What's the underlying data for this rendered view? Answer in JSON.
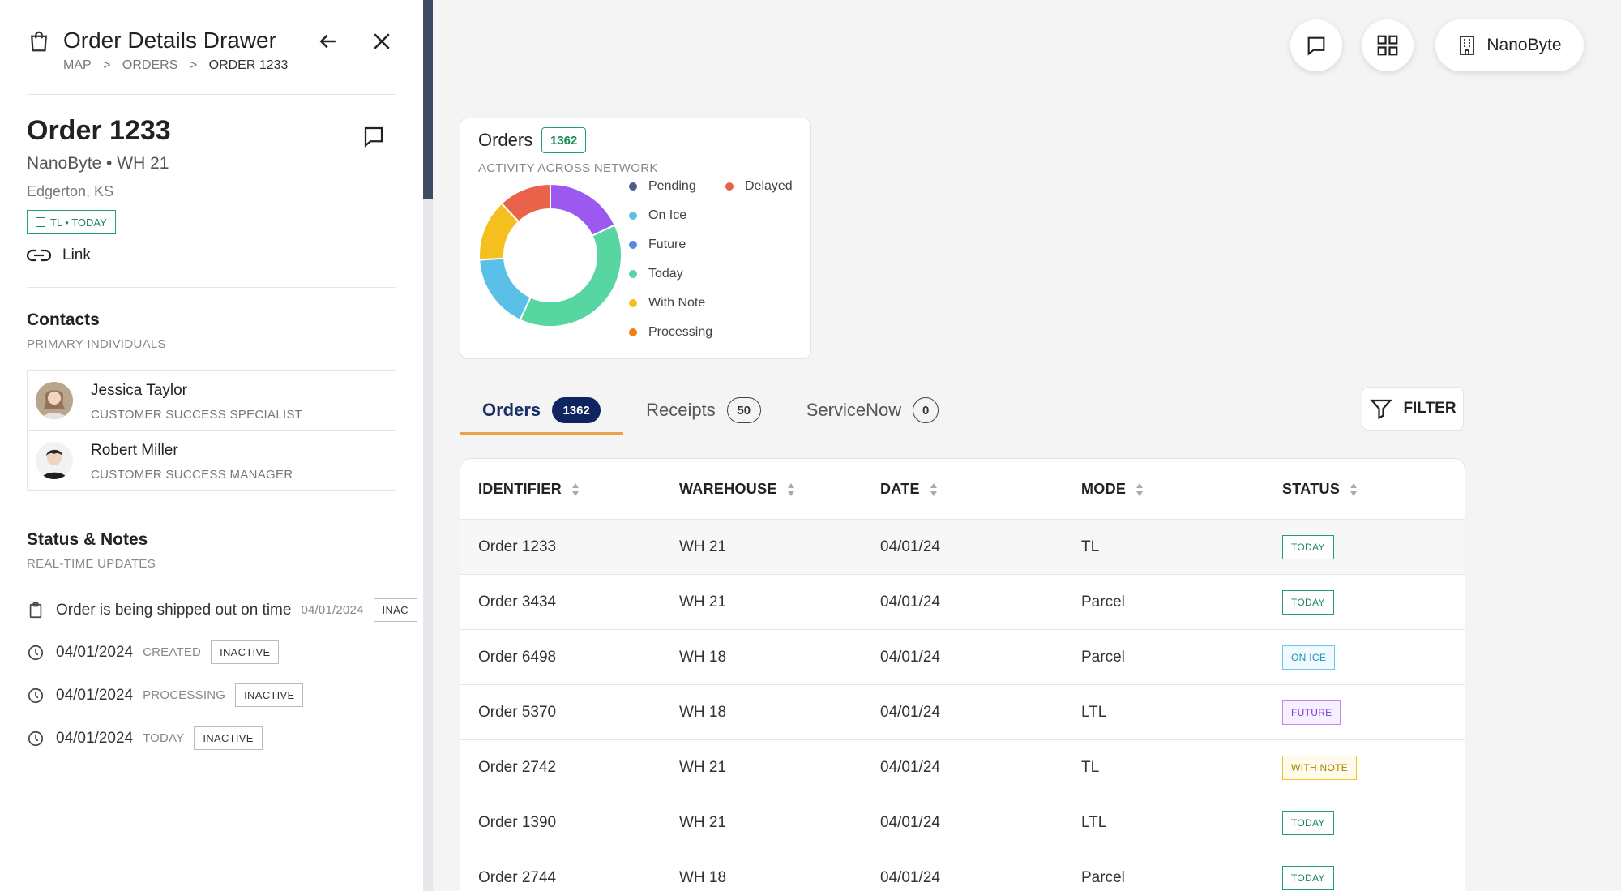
{
  "drawer": {
    "title": "Order Details Drawer",
    "breadcrumbs": [
      "MAP",
      ">",
      "ORDERS",
      ">",
      "ORDER 1233"
    ],
    "order": {
      "title": "Order 1233",
      "subtitle": "NanoByte • WH 21",
      "location": "Edgerton, KS",
      "tag": "TL • TODAY",
      "link_label": "Link"
    },
    "contacts": {
      "title": "Contacts",
      "subtitle": "PRIMARY INDIVIDUALS",
      "items": [
        {
          "name": "Jessica Taylor",
          "role": "CUSTOMER SUCCESS SPECIALIST"
        },
        {
          "name": "Robert Miller",
          "role": "CUSTOMER SUCCESS MANAGER"
        }
      ]
    },
    "status_notes": {
      "title": "Status & Notes",
      "subtitle": "REAL-TIME UPDATES",
      "note": {
        "text": "Order is being shipped out on time",
        "date": "04/01/2024",
        "pill": "INAC"
      },
      "events": [
        {
          "date": "04/01/2024",
          "label": "CREATED",
          "pill": "INACTIVE"
        },
        {
          "date": "04/01/2024",
          "label": "PROCESSING",
          "pill": "INACTIVE"
        },
        {
          "date": "04/01/2024",
          "label": "TODAY",
          "pill": "INACTIVE"
        }
      ]
    }
  },
  "header": {
    "org_label": "NanoByte",
    "icons": [
      "chat-icon",
      "grid-icon",
      "building-icon"
    ]
  },
  "summary": {
    "title": "Orders",
    "count": "1362",
    "subtitle": "ACTIVITY ACROSS NETWORK"
  },
  "chart_data": {
    "type": "pie",
    "variant": "donut",
    "categories": [
      "Pending",
      "On Ice",
      "Future",
      "Today",
      "With Note",
      "Processing",
      "Delayed"
    ],
    "values": [
      0,
      17,
      0,
      39,
      14,
      0,
      12
    ],
    "extra_segment": {
      "color": "#9b59f0",
      "value": 18
    },
    "colors": {
      "Pending": "#4a5c8a",
      "On Ice": "#5bc0e8",
      "Future": "#5a86e6",
      "Today": "#58d6a2",
      "With Note": "#f5bf1d",
      "Processing": "#f07f12",
      "Delayed": "#e8634a"
    },
    "legend_position": "right"
  },
  "tabs": [
    {
      "label": "Orders",
      "count": "1362",
      "active": true
    },
    {
      "label": "Receipts",
      "count": "50",
      "active": false
    },
    {
      "label": "ServiceNow",
      "count": "0",
      "active": false
    }
  ],
  "filter_label": "FILTER",
  "table": {
    "columns": [
      "IDENTIFIER",
      "WAREHOUSE",
      "DATE",
      "MODE",
      "STATUS"
    ],
    "rows": [
      {
        "id": "Order 1233",
        "wh": "WH 21",
        "date": "04/01/24",
        "mode": "TL",
        "status": "TODAY"
      },
      {
        "id": "Order 3434",
        "wh": "WH 21",
        "date": "04/01/24",
        "mode": "Parcel",
        "status": "TODAY"
      },
      {
        "id": "Order 6498",
        "wh": "WH 18",
        "date": "04/01/24",
        "mode": "Parcel",
        "status": "ON ICE"
      },
      {
        "id": "Order 5370",
        "wh": "WH 18",
        "date": "04/01/24",
        "mode": "LTL",
        "status": "FUTURE"
      },
      {
        "id": "Order 2742",
        "wh": "WH 21",
        "date": "04/01/24",
        "mode": "TL",
        "status": "WITH NOTE"
      },
      {
        "id": "Order 1390",
        "wh": "WH 21",
        "date": "04/01/24",
        "mode": "LTL",
        "status": "TODAY"
      },
      {
        "id": "Order 2744",
        "wh": "WH 18",
        "date": "04/01/24",
        "mode": "Parcel",
        "status": "TODAY"
      }
    ],
    "status_colors": {
      "TODAY": {
        "fg": "#1d8a5a",
        "bg": "#ffffff",
        "border": "#22a06b"
      },
      "ON ICE": {
        "fg": "#1a8fc4",
        "bg": "#f0fafe",
        "border": "#6cc7ec"
      },
      "FUTURE": {
        "fg": "#7d3bd6",
        "bg": "#f6efff",
        "border": "#b98cf2"
      },
      "WITH NOTE": {
        "fg": "#a87d05",
        "bg": "#fffbea",
        "border": "#f2c524"
      }
    }
  }
}
